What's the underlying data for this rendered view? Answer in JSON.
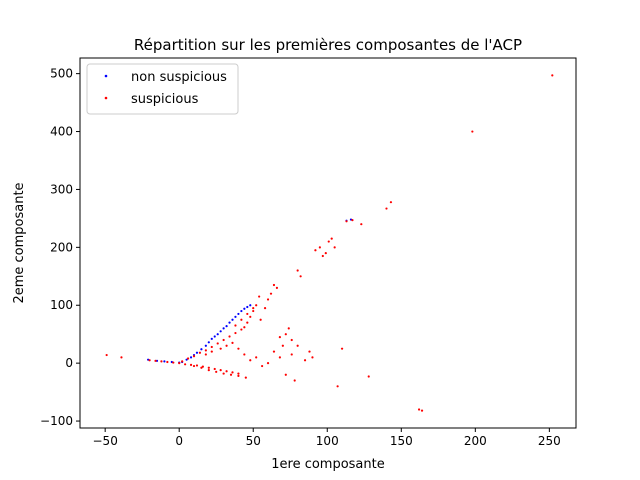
{
  "chart_data": {
    "type": "scatter",
    "title": "Répartition sur les premières composantes de l'ACP",
    "xlabel": "1ere composante",
    "ylabel": "2eme composante",
    "xlim": [
      -67,
      268
    ],
    "ylim": [
      -112,
      527
    ],
    "xticks": [
      -50,
      0,
      50,
      100,
      150,
      200,
      250
    ],
    "yticks": [
      -100,
      0,
      100,
      200,
      300,
      400,
      500
    ],
    "grid": false,
    "legend_position": "top-left",
    "series": [
      {
        "name": "non suspicious",
        "color": "#0000ff",
        "points": [
          [
            -21,
            6
          ],
          [
            -15,
            4
          ],
          [
            -10,
            3
          ],
          [
            -5,
            2
          ],
          [
            0,
            1
          ],
          [
            2,
            2
          ],
          [
            5,
            6
          ],
          [
            8,
            10
          ],
          [
            10,
            14
          ],
          [
            12,
            18
          ],
          [
            15,
            24
          ],
          [
            18,
            30
          ],
          [
            20,
            36
          ],
          [
            22,
            42
          ],
          [
            24,
            46
          ],
          [
            26,
            50
          ],
          [
            28,
            55
          ],
          [
            30,
            60
          ],
          [
            32,
            64
          ],
          [
            34,
            70
          ],
          [
            36,
            75
          ],
          [
            38,
            80
          ],
          [
            40,
            85
          ],
          [
            42,
            90
          ],
          [
            44,
            94
          ],
          [
            46,
            97
          ],
          [
            48,
            100
          ],
          [
            113,
            246
          ],
          [
            116,
            248
          ]
        ]
      },
      {
        "name": "suspicious",
        "color": "#ff0000",
        "points": [
          [
            -49,
            14
          ],
          [
            -39,
            10
          ],
          [
            -20,
            5
          ],
          [
            -16,
            4
          ],
          [
            -12,
            3
          ],
          [
            -8,
            2
          ],
          [
            -4,
            1
          ],
          [
            0,
            0
          ],
          [
            2,
            3
          ],
          [
            4,
            -2
          ],
          [
            6,
            8
          ],
          [
            8,
            -3
          ],
          [
            10,
            12
          ],
          [
            12,
            -4
          ],
          [
            14,
            18
          ],
          [
            16,
            -6
          ],
          [
            18,
            22
          ],
          [
            20,
            -8
          ],
          [
            22,
            28
          ],
          [
            24,
            -10
          ],
          [
            26,
            34
          ],
          [
            28,
            -12
          ],
          [
            30,
            40
          ],
          [
            32,
            -14
          ],
          [
            34,
            46
          ],
          [
            36,
            -16
          ],
          [
            38,
            52
          ],
          [
            40,
            -18
          ],
          [
            42,
            58
          ],
          [
            44,
            62
          ],
          [
            46,
            70
          ],
          [
            48,
            80
          ],
          [
            50,
            90
          ],
          [
            52,
            100
          ],
          [
            55,
            75
          ],
          [
            58,
            95
          ],
          [
            60,
            110
          ],
          [
            62,
            120
          ],
          [
            64,
            135
          ],
          [
            66,
            130
          ],
          [
            68,
            45
          ],
          [
            70,
            30
          ],
          [
            72,
            -20
          ],
          [
            74,
            60
          ],
          [
            76,
            15
          ],
          [
            78,
            -30
          ],
          [
            80,
            160
          ],
          [
            82,
            150
          ],
          [
            85,
            5
          ],
          [
            88,
            20
          ],
          [
            90,
            10
          ],
          [
            92,
            195
          ],
          [
            95,
            200
          ],
          [
            97,
            185
          ],
          [
            99,
            190
          ],
          [
            101,
            210
          ],
          [
            103,
            215
          ],
          [
            105,
            200
          ],
          [
            107,
            -40
          ],
          [
            110,
            25
          ],
          [
            113,
            245
          ],
          [
            117,
            247
          ],
          [
            123,
            240
          ],
          [
            128,
            -23
          ],
          [
            140,
            267
          ],
          [
            143,
            278
          ],
          [
            162,
            -80
          ],
          [
            164,
            -82
          ],
          [
            198,
            400
          ],
          [
            252,
            497
          ],
          [
            20,
            -12
          ],
          [
            25,
            -15
          ],
          [
            30,
            -18
          ],
          [
            35,
            -20
          ],
          [
            40,
            -22
          ],
          [
            45,
            -25
          ],
          [
            15,
            -8
          ],
          [
            10,
            -5
          ],
          [
            18,
            15
          ],
          [
            22,
            20
          ],
          [
            28,
            25
          ],
          [
            32,
            30
          ],
          [
            36,
            35
          ],
          [
            40,
            25
          ],
          [
            44,
            15
          ],
          [
            48,
            5
          ],
          [
            52,
            10
          ],
          [
            56,
            -5
          ],
          [
            60,
            0
          ],
          [
            64,
            20
          ],
          [
            68,
            10
          ],
          [
            72,
            50
          ],
          [
            76,
            40
          ],
          [
            80,
            30
          ],
          [
            38,
            65
          ],
          [
            42,
            75
          ],
          [
            46,
            85
          ],
          [
            50,
            95
          ],
          [
            54,
            115
          ]
        ]
      }
    ]
  }
}
